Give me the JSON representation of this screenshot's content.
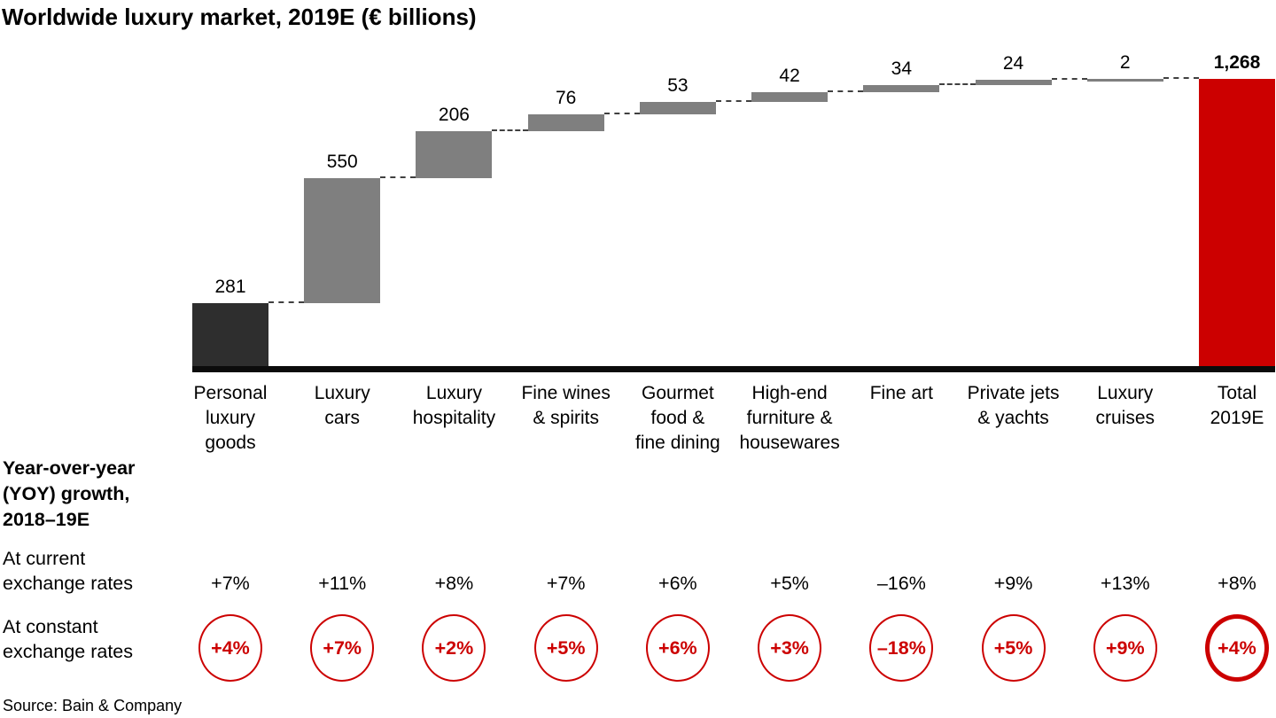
{
  "title": "Worldwide luxury market, 2019E (€ billions)",
  "source": "Source: Bain & Company",
  "yoy": {
    "header": "Year-over-year\n(YOY) growth,\n2018–19E",
    "row_current_label": "At current\nexchange rates",
    "row_constant_label": "At constant\nexchange rates"
  },
  "colors": {
    "first_bar": "#2e2e2e",
    "rise_bar": "#7f7f7f",
    "total_bar": "#cc0000",
    "accent_red": "#cc0000"
  },
  "chart_data": {
    "type": "bar",
    "subtype": "waterfall",
    "title": "Worldwide luxury market, 2019E (€ billions)",
    "ylabel": "€ billions",
    "ylim": [
      0,
      1268
    ],
    "grid": false,
    "legend": "none",
    "segments": [
      {
        "category": "Personal\nluxury\ngoods",
        "value": 281,
        "value_label": "281",
        "yoy_current": "+7%",
        "yoy_constant": "+4%"
      },
      {
        "category": "Luxury\ncars",
        "value": 550,
        "value_label": "550",
        "yoy_current": "+11%",
        "yoy_constant": "+7%"
      },
      {
        "category": "Luxury\nhospitality",
        "value": 206,
        "value_label": "206",
        "yoy_current": "+8%",
        "yoy_constant": "+2%"
      },
      {
        "category": "Fine wines\n& spirits",
        "value": 76,
        "value_label": "76",
        "yoy_current": "+7%",
        "yoy_constant": "+5%"
      },
      {
        "category": "Gourmet\nfood &\nfine dining",
        "value": 53,
        "value_label": "53",
        "yoy_current": "+6%",
        "yoy_constant": "+6%"
      },
      {
        "category": "High-end\nfurniture &\nhousewares",
        "value": 42,
        "value_label": "42",
        "yoy_current": "+5%",
        "yoy_constant": "+3%"
      },
      {
        "category": "Fine art",
        "value": 34,
        "value_label": "34",
        "yoy_current": "–16%",
        "yoy_constant": "–18%"
      },
      {
        "category": "Private jets\n& yachts",
        "value": 24,
        "value_label": "24",
        "yoy_current": "+9%",
        "yoy_constant": "+5%"
      },
      {
        "category": "Luxury\ncruises",
        "value": 2,
        "value_label": "2",
        "yoy_current": "+13%",
        "yoy_constant": "+9%"
      }
    ],
    "total": {
      "category": "Total\n2019E",
      "value": 1268,
      "value_label": "1,268",
      "yoy_current": "+8%",
      "yoy_constant": "+4%",
      "circle_emphasized": true
    }
  }
}
